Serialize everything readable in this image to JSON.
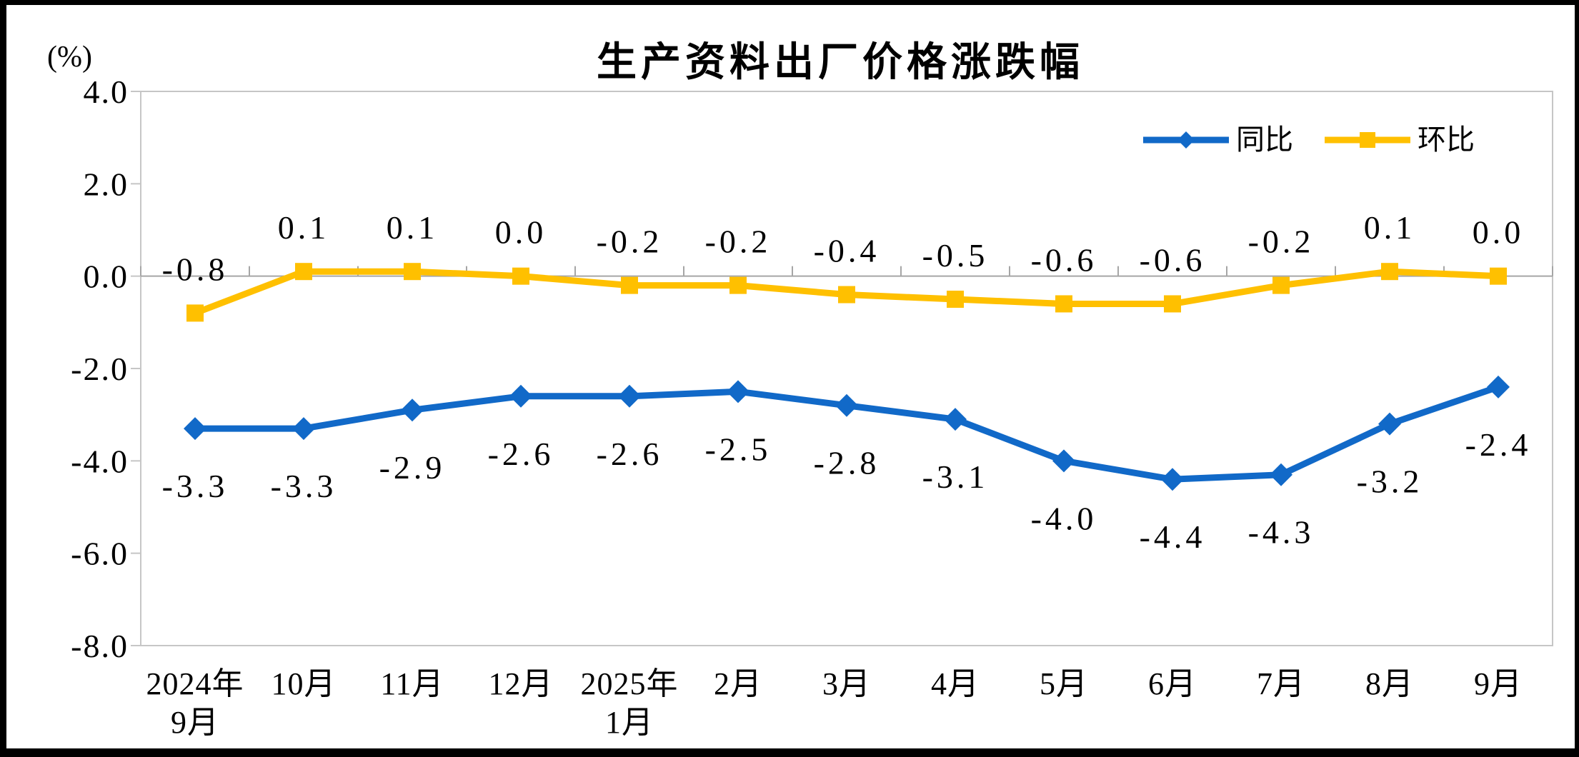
{
  "chart_data": {
    "type": "line",
    "title": "生产资料出厂价格涨跌幅",
    "unit_label": "(%)",
    "categories": [
      [
        "2024年",
        "9月"
      ],
      [
        "10月"
      ],
      [
        "11月"
      ],
      [
        "12月"
      ],
      [
        "2025年",
        "1月"
      ],
      [
        "2月"
      ],
      [
        "3月"
      ],
      [
        "4月"
      ],
      [
        "5月"
      ],
      [
        "6月"
      ],
      [
        "7月"
      ],
      [
        "8月"
      ],
      [
        "9月"
      ]
    ],
    "series": [
      {
        "name": "同比",
        "color": "#1169C8",
        "marker": "diamond",
        "label_position": "below",
        "values": [
          -3.3,
          -3.3,
          -2.9,
          -2.6,
          -2.6,
          -2.5,
          -2.8,
          -3.1,
          -4.0,
          -4.4,
          -4.3,
          -3.2,
          -2.4
        ],
        "labels": [
          "-3.3",
          "-3.3",
          "-2.9",
          "-2.6",
          "-2.6",
          "-2.5",
          "-2.8",
          "-3.1",
          "-4.0",
          "-4.4",
          "-4.3",
          "-3.2",
          "-2.4"
        ]
      },
      {
        "name": "环比",
        "color": "#FFC000",
        "marker": "square",
        "label_position": "above",
        "values": [
          -0.8,
          0.1,
          0.1,
          0.0,
          -0.2,
          -0.2,
          -0.4,
          -0.5,
          -0.6,
          -0.6,
          -0.2,
          0.1,
          0.0
        ],
        "labels": [
          "-0.8",
          "0.1",
          "0.1",
          "0.0",
          "-0.2",
          "-0.2",
          "-0.4",
          "-0.5",
          "-0.6",
          "-0.6",
          "-0.2",
          "0.1",
          "0.0"
        ]
      }
    ],
    "y_axis": {
      "min": -8.0,
      "max": 4.0,
      "step": 2.0,
      "tick_labels": [
        "4.0",
        "2.0",
        "0.0",
        "-2.0",
        "-4.0",
        "-6.0",
        "-8.0"
      ]
    },
    "legend_position": "top-right-inside",
    "grid": "zero-line-only",
    "colors": {
      "plot_border": "#C6C6C6",
      "zero_line": "#A6A6A6",
      "text": "#000000",
      "background": "#FFFFFF",
      "outer_frame": "#000000"
    }
  }
}
